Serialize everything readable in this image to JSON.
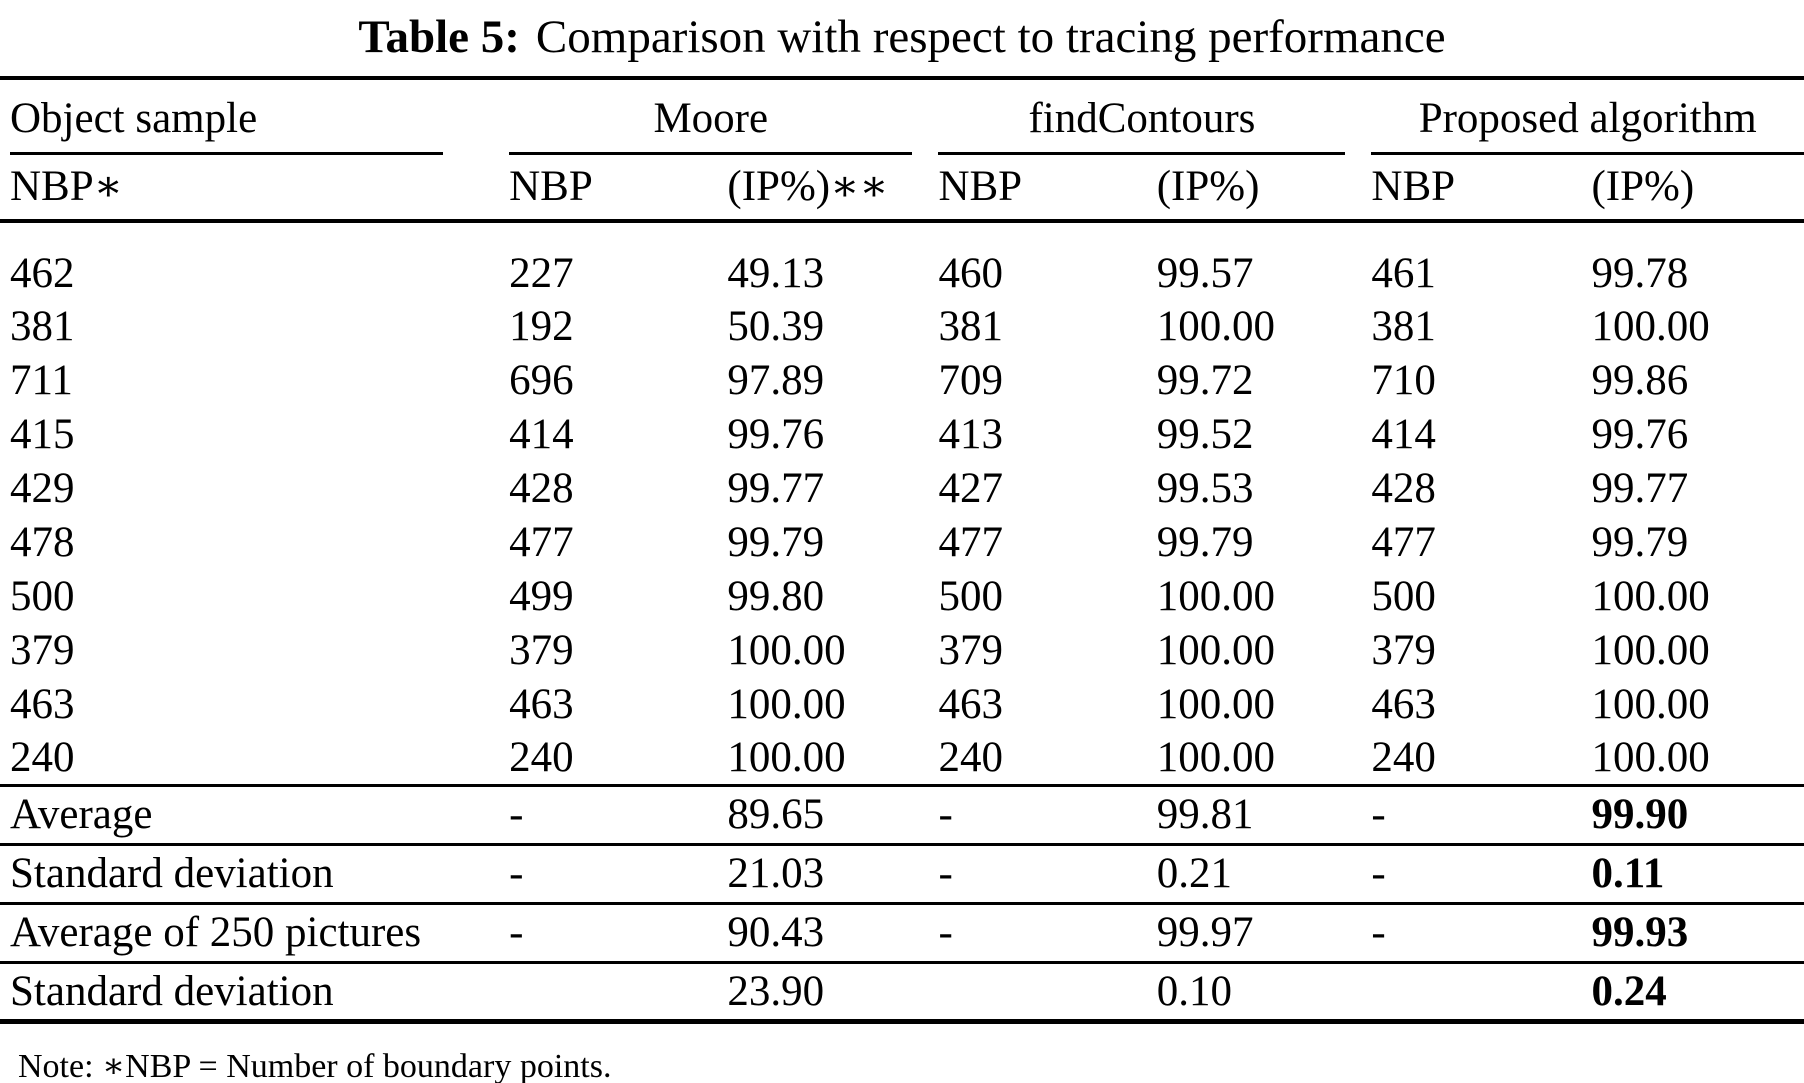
{
  "caption": {
    "label": "Table 5:",
    "text": "Comparison with respect to tracing performance"
  },
  "header": {
    "object_sample": "Object sample",
    "groups": [
      "Moore",
      "findContours",
      "Proposed algorithm"
    ],
    "sub": [
      "NBP∗",
      "NBP",
      "(IP%)∗∗",
      "NBP",
      "(IP%)",
      "NBP",
      "(IP%)"
    ]
  },
  "columns": [
    "nbp-sample",
    "moore-nbp",
    "moore-ip",
    "findcontours-nbp",
    "findcontours-ip",
    "proposed-nbp",
    "proposed-ip"
  ],
  "data_rows": [
    [
      "462",
      "227",
      "49.13",
      "460",
      "99.57",
      "461",
      "99.78"
    ],
    [
      "381",
      "192",
      "50.39",
      "381",
      "100.00",
      "381",
      "100.00"
    ],
    [
      "711",
      "696",
      "97.89",
      "709",
      "99.72",
      "710",
      "99.86"
    ],
    [
      "415",
      "414",
      "99.76",
      "413",
      "99.52",
      "414",
      "99.76"
    ],
    [
      "429",
      "428",
      "99.77",
      "427",
      "99.53",
      "428",
      "99.77"
    ],
    [
      "478",
      "477",
      "99.79",
      "477",
      "99.79",
      "477",
      "99.79"
    ],
    [
      "500",
      "499",
      "99.80",
      "500",
      "100.00",
      "500",
      "100.00"
    ],
    [
      "379",
      "379",
      "100.00",
      "379",
      "100.00",
      "379",
      "100.00"
    ],
    [
      "463",
      "463",
      "100.00",
      "463",
      "100.00",
      "463",
      "100.00"
    ],
    [
      "240",
      "240",
      "100.00",
      "240",
      "100.00",
      "240",
      "100.00"
    ]
  ],
  "summary_rows": [
    {
      "cells": [
        "Average",
        "-",
        "89.65",
        "-",
        "99.81",
        "-",
        "99.90"
      ],
      "bold_last": true
    },
    {
      "cells": [
        "Standard deviation",
        "-",
        "21.03",
        "-",
        "0.21",
        "-",
        "0.11"
      ],
      "bold_last": true
    },
    {
      "cells": [
        "Average of 250 pictures",
        "-",
        "90.43",
        "-",
        "99.97",
        "-",
        "99.93"
      ],
      "bold_last": true
    },
    {
      "cells": [
        "Standard deviation",
        "",
        "23.90",
        "",
        "0.10",
        "",
        "0.24"
      ],
      "bold_last": true
    }
  ],
  "note": "Note: ∗NBP = Number of boundary points."
}
